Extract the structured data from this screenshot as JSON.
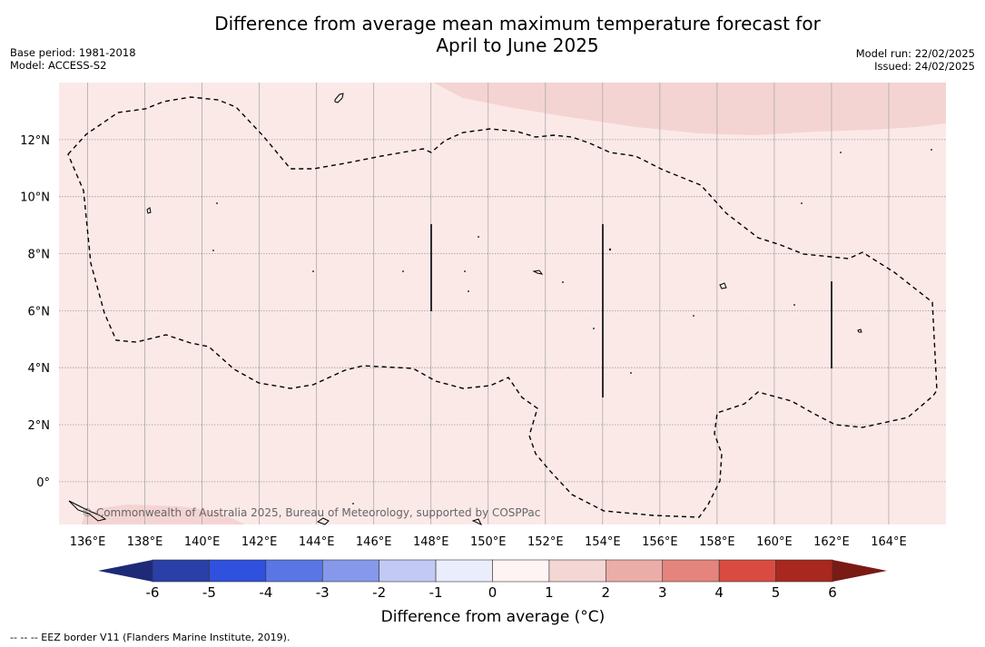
{
  "header": {
    "title_line1": "Difference from average mean maximum temperature forecast for",
    "title_line2": "April to June 2025",
    "base_period": "Base period: 1981-2018",
    "model": "Model: ACCESS-S2",
    "model_run": "Model run: 22/02/2025",
    "issued": "Issued: 24/02/2025"
  },
  "map": {
    "lon_range": [
      135,
      166
    ],
    "lat_range": [
      -1.5,
      14
    ],
    "lon_ticks": [
      "136°E",
      "138°E",
      "140°E",
      "142°E",
      "144°E",
      "146°E",
      "148°E",
      "150°E",
      "152°E",
      "154°E",
      "156°E",
      "158°E",
      "160°E",
      "162°E",
      "164°E"
    ],
    "lat_ticks": [
      "0°",
      "2°N",
      "4°N",
      "6°N",
      "8°N",
      "10°N",
      "12°N"
    ],
    "background_color": "#fbe9e8",
    "anomaly_region_color": "#f4d4d2",
    "copyright": "© Commonwealth of Australia 2025, Bureau of Meteorology, supported by COSPPac"
  },
  "colorbar": {
    "tick_labels": [
      "-6",
      "-5",
      "-4",
      "-3",
      "-2",
      "-1",
      "0",
      "1",
      "2",
      "3",
      "4",
      "5",
      "6"
    ],
    "colors": [
      "#2b3fa8",
      "#3050de",
      "#5a75e4",
      "#8598ea",
      "#c1c9f4",
      "#eaedfb",
      "#fef4f3",
      "#f4d6d4",
      "#ebada8",
      "#e5847c",
      "#d94b40",
      "#a8281f"
    ],
    "low_extend_color": "#1e2a78",
    "high_extend_color": "#7a1a14",
    "label": "Difference from average (°C)"
  },
  "footnote": "--  --  -- EEZ border V11 (Flanders Marine Institute, 2019)."
}
